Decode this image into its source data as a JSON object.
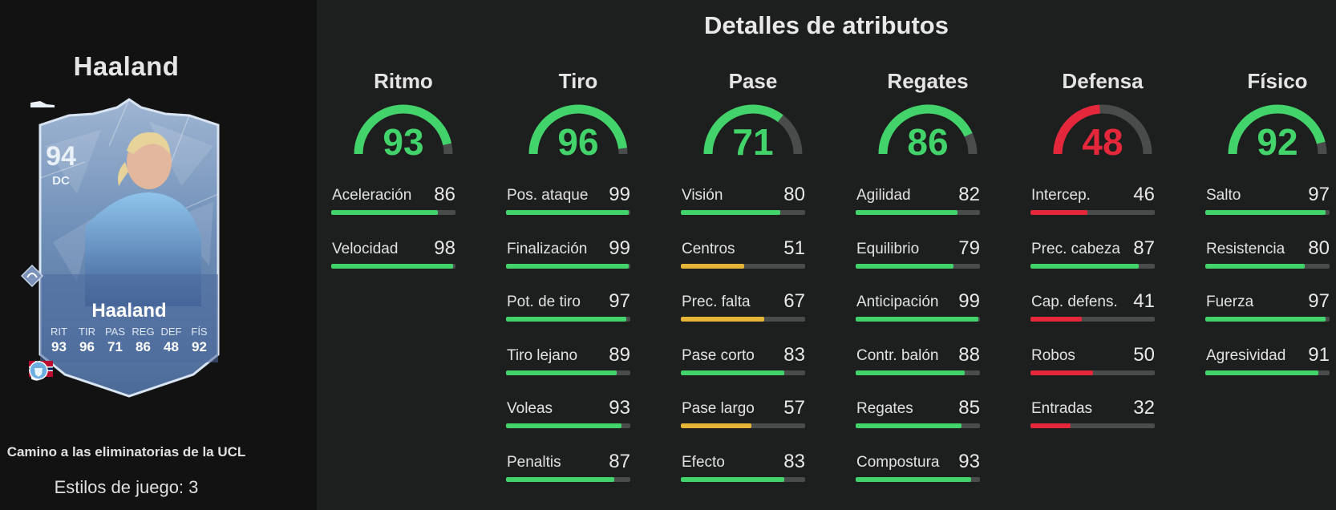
{
  "colors": {
    "green": "#43d36b",
    "yellow": "#e6b537",
    "red": "#e5273b",
    "track": "#4a4b4b"
  },
  "player": {
    "title": "Haaland",
    "card": {
      "rating": "94",
      "position": "DC",
      "name": "Haaland",
      "stats": [
        {
          "label": "RIT",
          "value": "93"
        },
        {
          "label": "TIR",
          "value": "96"
        },
        {
          "label": "PAS",
          "value": "71"
        },
        {
          "label": "REG",
          "value": "86"
        },
        {
          "label": "DEF",
          "value": "48"
        },
        {
          "label": "FÍS",
          "value": "92"
        }
      ],
      "badges": [
        "norway-flag-icon",
        "premier-league-icon",
        "manchester-city-crest-icon"
      ]
    },
    "event": "Camino a las eliminatorias de la UCL",
    "playstyles": "Estilos de juego: 3"
  },
  "section_title": "Detalles de atributos",
  "categories": [
    {
      "name": "Ritmo",
      "value": 93,
      "color": "green",
      "stats": [
        {
          "label": "Aceleración",
          "value": 86,
          "color": "green"
        },
        {
          "label": "Velocidad",
          "value": 98,
          "color": "green"
        }
      ]
    },
    {
      "name": "Tiro",
      "value": 96,
      "color": "green",
      "stats": [
        {
          "label": "Pos. ataque",
          "value": 99,
          "color": "green"
        },
        {
          "label": "Finalización",
          "value": 99,
          "color": "green"
        },
        {
          "label": "Pot. de tiro",
          "value": 97,
          "color": "green"
        },
        {
          "label": "Tiro lejano",
          "value": 89,
          "color": "green"
        },
        {
          "label": "Voleas",
          "value": 93,
          "color": "green"
        },
        {
          "label": "Penaltis",
          "value": 87,
          "color": "green"
        }
      ]
    },
    {
      "name": "Pase",
      "value": 71,
      "color": "green",
      "stats": [
        {
          "label": "Visión",
          "value": 80,
          "color": "green"
        },
        {
          "label": "Centros",
          "value": 51,
          "color": "yellow"
        },
        {
          "label": "Prec. falta",
          "value": 67,
          "color": "yellow"
        },
        {
          "label": "Pase corto",
          "value": 83,
          "color": "green"
        },
        {
          "label": "Pase largo",
          "value": 57,
          "color": "yellow"
        },
        {
          "label": "Efecto",
          "value": 83,
          "color": "green"
        }
      ]
    },
    {
      "name": "Regates",
      "value": 86,
      "color": "green",
      "stats": [
        {
          "label": "Agilidad",
          "value": 82,
          "color": "green"
        },
        {
          "label": "Equilibrio",
          "value": 79,
          "color": "green"
        },
        {
          "label": "Anticipación",
          "value": 99,
          "color": "green"
        },
        {
          "label": "Contr. balón",
          "value": 88,
          "color": "green"
        },
        {
          "label": "Regates",
          "value": 85,
          "color": "green"
        },
        {
          "label": "Compostura",
          "value": 93,
          "color": "green"
        }
      ]
    },
    {
      "name": "Defensa",
      "value": 48,
      "color": "red",
      "stats": [
        {
          "label": "Intercep.",
          "value": 46,
          "color": "red"
        },
        {
          "label": "Prec. cabeza",
          "value": 87,
          "color": "green"
        },
        {
          "label": "Cap. defens.",
          "value": 41,
          "color": "red"
        },
        {
          "label": "Robos",
          "value": 50,
          "color": "red"
        },
        {
          "label": "Entradas",
          "value": 32,
          "color": "red"
        }
      ]
    },
    {
      "name": "Físico",
      "value": 92,
      "color": "green",
      "stats": [
        {
          "label": "Salto",
          "value": 97,
          "color": "green"
        },
        {
          "label": "Resistencia",
          "value": 80,
          "color": "green"
        },
        {
          "label": "Fuerza",
          "value": 97,
          "color": "green"
        },
        {
          "label": "Agresividad",
          "value": 91,
          "color": "green"
        }
      ]
    }
  ]
}
